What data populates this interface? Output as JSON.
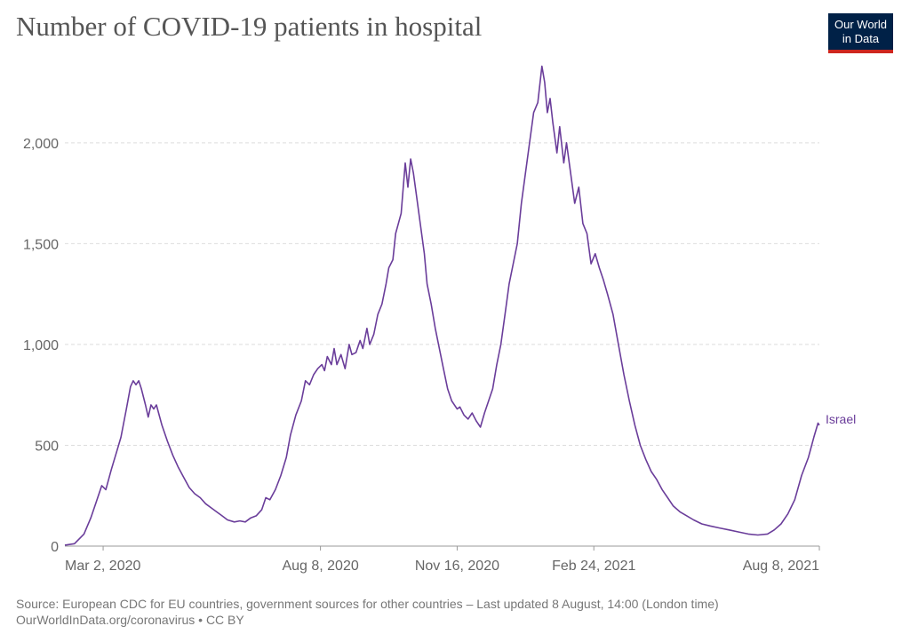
{
  "page": {
    "title": "Number of COVID-19 patients in hospital",
    "logo": {
      "line1": "Our World",
      "line2": "in Data"
    },
    "source_line1": "Source: European CDC for EU countries, government sources for other countries – Last updated 8 August, 14:00 (London time)",
    "source_line2": "OurWorldInData.org/coronavirus • CC BY"
  },
  "colors": {
    "series": "#6a3d9a",
    "grid": "#dddddd",
    "axis_text": "#666666",
    "title": "#555555",
    "logo_bg": "#002147",
    "logo_accent": "#ce261e"
  },
  "chart_data": {
    "type": "line",
    "title": "Number of COVID-19 patients in hospital",
    "xlabel": "",
    "ylabel": "",
    "xlim": [
      "2020-02-03",
      "2021-08-08"
    ],
    "ylim": [
      0,
      2400
    ],
    "grid": "horizontal",
    "yticks": [
      {
        "value": 0,
        "label": "0"
      },
      {
        "value": 500,
        "label": "500"
      },
      {
        "value": 1000,
        "label": "1,000"
      },
      {
        "value": 1500,
        "label": "1,500"
      },
      {
        "value": 2000,
        "label": "2,000"
      }
    ],
    "xticks": [
      {
        "value": "2020-03-02",
        "label": "Mar 2, 2020"
      },
      {
        "value": "2020-08-08",
        "label": "Aug 8, 2020"
      },
      {
        "value": "2020-11-16",
        "label": "Nov 16, 2020"
      },
      {
        "value": "2021-02-24",
        "label": "Feb 24, 2021"
      },
      {
        "value": "2021-08-08",
        "label": "Aug 8, 2021"
      }
    ],
    "series": [
      {
        "name": "Israel",
        "points": [
          [
            "2020-02-03",
            5
          ],
          [
            "2020-02-10",
            12
          ],
          [
            "2020-02-17",
            60
          ],
          [
            "2020-02-22",
            140
          ],
          [
            "2020-02-26",
            220
          ],
          [
            "2020-03-01",
            300
          ],
          [
            "2020-03-04",
            280
          ],
          [
            "2020-03-08",
            380
          ],
          [
            "2020-03-12",
            470
          ],
          [
            "2020-03-15",
            540
          ],
          [
            "2020-03-19",
            680
          ],
          [
            "2020-03-22",
            790
          ],
          [
            "2020-03-24",
            820
          ],
          [
            "2020-03-26",
            800
          ],
          [
            "2020-03-28",
            820
          ],
          [
            "2020-03-30",
            780
          ],
          [
            "2020-04-02",
            700
          ],
          [
            "2020-04-04",
            640
          ],
          [
            "2020-04-06",
            700
          ],
          [
            "2020-04-08",
            680
          ],
          [
            "2020-04-10",
            700
          ],
          [
            "2020-04-14",
            600
          ],
          [
            "2020-04-18",
            520
          ],
          [
            "2020-04-22",
            450
          ],
          [
            "2020-04-26",
            390
          ],
          [
            "2020-04-30",
            340
          ],
          [
            "2020-05-04",
            290
          ],
          [
            "2020-05-08",
            260
          ],
          [
            "2020-05-12",
            240
          ],
          [
            "2020-05-16",
            210
          ],
          [
            "2020-05-20",
            190
          ],
          [
            "2020-05-24",
            170
          ],
          [
            "2020-05-28",
            150
          ],
          [
            "2020-06-01",
            130
          ],
          [
            "2020-06-06",
            120
          ],
          [
            "2020-06-10",
            125
          ],
          [
            "2020-06-14",
            120
          ],
          [
            "2020-06-18",
            140
          ],
          [
            "2020-06-22",
            150
          ],
          [
            "2020-06-26",
            180
          ],
          [
            "2020-06-29",
            240
          ],
          [
            "2020-07-02",
            230
          ],
          [
            "2020-07-06",
            280
          ],
          [
            "2020-07-10",
            350
          ],
          [
            "2020-07-14",
            440
          ],
          [
            "2020-07-17",
            550
          ],
          [
            "2020-07-21",
            650
          ],
          [
            "2020-07-25",
            720
          ],
          [
            "2020-07-28",
            820
          ],
          [
            "2020-07-31",
            800
          ],
          [
            "2020-08-03",
            850
          ],
          [
            "2020-08-06",
            880
          ],
          [
            "2020-08-09",
            900
          ],
          [
            "2020-08-11",
            870
          ],
          [
            "2020-08-13",
            940
          ],
          [
            "2020-08-16",
            900
          ],
          [
            "2020-08-18",
            980
          ],
          [
            "2020-08-20",
            900
          ],
          [
            "2020-08-23",
            950
          ],
          [
            "2020-08-26",
            880
          ],
          [
            "2020-08-29",
            1000
          ],
          [
            "2020-08-31",
            950
          ],
          [
            "2020-09-03",
            960
          ],
          [
            "2020-09-06",
            1020
          ],
          [
            "2020-09-08",
            980
          ],
          [
            "2020-09-11",
            1080
          ],
          [
            "2020-09-13",
            1000
          ],
          [
            "2020-09-16",
            1050
          ],
          [
            "2020-09-19",
            1150
          ],
          [
            "2020-09-22",
            1200
          ],
          [
            "2020-09-25",
            1300
          ],
          [
            "2020-09-27",
            1380
          ],
          [
            "2020-09-30",
            1420
          ],
          [
            "2020-10-02",
            1550
          ],
          [
            "2020-10-04",
            1600
          ],
          [
            "2020-10-06",
            1650
          ],
          [
            "2020-10-09",
            1900
          ],
          [
            "2020-10-11",
            1780
          ],
          [
            "2020-10-13",
            1920
          ],
          [
            "2020-10-15",
            1850
          ],
          [
            "2020-10-17",
            1750
          ],
          [
            "2020-10-20",
            1600
          ],
          [
            "2020-10-23",
            1450
          ],
          [
            "2020-10-25",
            1300
          ],
          [
            "2020-10-28",
            1200
          ],
          [
            "2020-10-31",
            1080
          ],
          [
            "2020-11-03",
            980
          ],
          [
            "2020-11-06",
            880
          ],
          [
            "2020-11-09",
            780
          ],
          [
            "2020-11-12",
            720
          ],
          [
            "2020-11-16",
            680
          ],
          [
            "2020-11-18",
            690
          ],
          [
            "2020-11-21",
            650
          ],
          [
            "2020-11-24",
            630
          ],
          [
            "2020-11-27",
            660
          ],
          [
            "2020-11-30",
            620
          ],
          [
            "2020-12-03",
            590
          ],
          [
            "2020-12-06",
            660
          ],
          [
            "2020-12-09",
            720
          ],
          [
            "2020-12-12",
            780
          ],
          [
            "2020-12-15",
            900
          ],
          [
            "2020-12-18",
            1000
          ],
          [
            "2020-12-21",
            1150
          ],
          [
            "2020-12-24",
            1300
          ],
          [
            "2020-12-27",
            1400
          ],
          [
            "2020-12-30",
            1500
          ],
          [
            "2021-01-02",
            1700
          ],
          [
            "2021-01-05",
            1850
          ],
          [
            "2021-01-08",
            2000
          ],
          [
            "2021-01-11",
            2150
          ],
          [
            "2021-01-14",
            2200
          ],
          [
            "2021-01-17",
            2380
          ],
          [
            "2021-01-19",
            2300
          ],
          [
            "2021-01-21",
            2150
          ],
          [
            "2021-01-23",
            2220
          ],
          [
            "2021-01-25",
            2100
          ],
          [
            "2021-01-28",
            1950
          ],
          [
            "2021-01-30",
            2080
          ],
          [
            "2021-02-02",
            1900
          ],
          [
            "2021-02-04",
            2000
          ],
          [
            "2021-02-07",
            1850
          ],
          [
            "2021-02-10",
            1700
          ],
          [
            "2021-02-13",
            1780
          ],
          [
            "2021-02-16",
            1600
          ],
          [
            "2021-02-19",
            1550
          ],
          [
            "2021-02-22",
            1400
          ],
          [
            "2021-02-25",
            1450
          ],
          [
            "2021-02-28",
            1380
          ],
          [
            "2021-03-03",
            1320
          ],
          [
            "2021-03-06",
            1250
          ],
          [
            "2021-03-10",
            1150
          ],
          [
            "2021-03-14",
            1000
          ],
          [
            "2021-03-18",
            850
          ],
          [
            "2021-03-22",
            720
          ],
          [
            "2021-03-26",
            600
          ],
          [
            "2021-03-30",
            500
          ],
          [
            "2021-04-03",
            430
          ],
          [
            "2021-04-07",
            370
          ],
          [
            "2021-04-11",
            330
          ],
          [
            "2021-04-15",
            280
          ],
          [
            "2021-04-19",
            240
          ],
          [
            "2021-04-23",
            200
          ],
          [
            "2021-04-28",
            170
          ],
          [
            "2021-05-03",
            150
          ],
          [
            "2021-05-08",
            130
          ],
          [
            "2021-05-14",
            110
          ],
          [
            "2021-05-20",
            100
          ],
          [
            "2021-05-27",
            90
          ],
          [
            "2021-06-03",
            80
          ],
          [
            "2021-06-10",
            70
          ],
          [
            "2021-06-17",
            60
          ],
          [
            "2021-06-24",
            55
          ],
          [
            "2021-07-01",
            60
          ],
          [
            "2021-07-06",
            80
          ],
          [
            "2021-07-11",
            110
          ],
          [
            "2021-07-16",
            160
          ],
          [
            "2021-07-21",
            230
          ],
          [
            "2021-07-26",
            350
          ],
          [
            "2021-07-31",
            440
          ],
          [
            "2021-08-04",
            540
          ],
          [
            "2021-08-07",
            610
          ],
          [
            "2021-08-08",
            600
          ]
        ]
      }
    ]
  }
}
